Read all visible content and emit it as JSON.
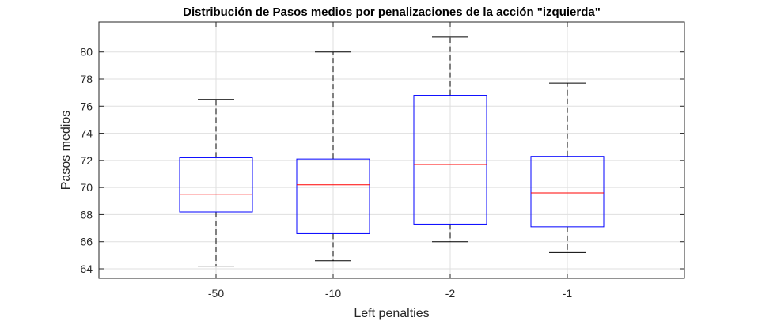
{
  "chart_data": {
    "type": "box",
    "title": "Distribución de Pasos medios por penalizaciones de la acción \"izquierda\"",
    "xlabel": "Left penalties",
    "ylabel": "Pasos medios",
    "categories": [
      "-50",
      "-10",
      "-2",
      "-1"
    ],
    "boxes": [
      {
        "category": "-50",
        "whisker_low": 64.2,
        "q1": 68.2,
        "median": 69.5,
        "q3": 72.2,
        "whisker_high": 76.5
      },
      {
        "category": "-10",
        "whisker_low": 64.6,
        "q1": 66.6,
        "median": 70.2,
        "q3": 72.1,
        "whisker_high": 80.0
      },
      {
        "category": "-2",
        "whisker_low": 66.0,
        "q1": 67.3,
        "median": 71.7,
        "q3": 76.8,
        "whisker_high": 81.1
      },
      {
        "category": "-1",
        "whisker_low": 65.2,
        "q1": 67.1,
        "median": 69.6,
        "q3": 72.3,
        "whisker_high": 77.7
      }
    ],
    "yticks": [
      "64",
      "66",
      "68",
      "70",
      "72",
      "74",
      "76",
      "78",
      "80"
    ],
    "ytick_values": [
      64,
      66,
      68,
      70,
      72,
      74,
      76,
      78,
      80
    ],
    "ylim": [
      63.3,
      82.2
    ],
    "grid": true,
    "colors": {
      "box": "#0000ff",
      "median": "#ff0000",
      "whisker": "#000000",
      "grid": "#dfdfdf",
      "axis": "#262626"
    }
  }
}
